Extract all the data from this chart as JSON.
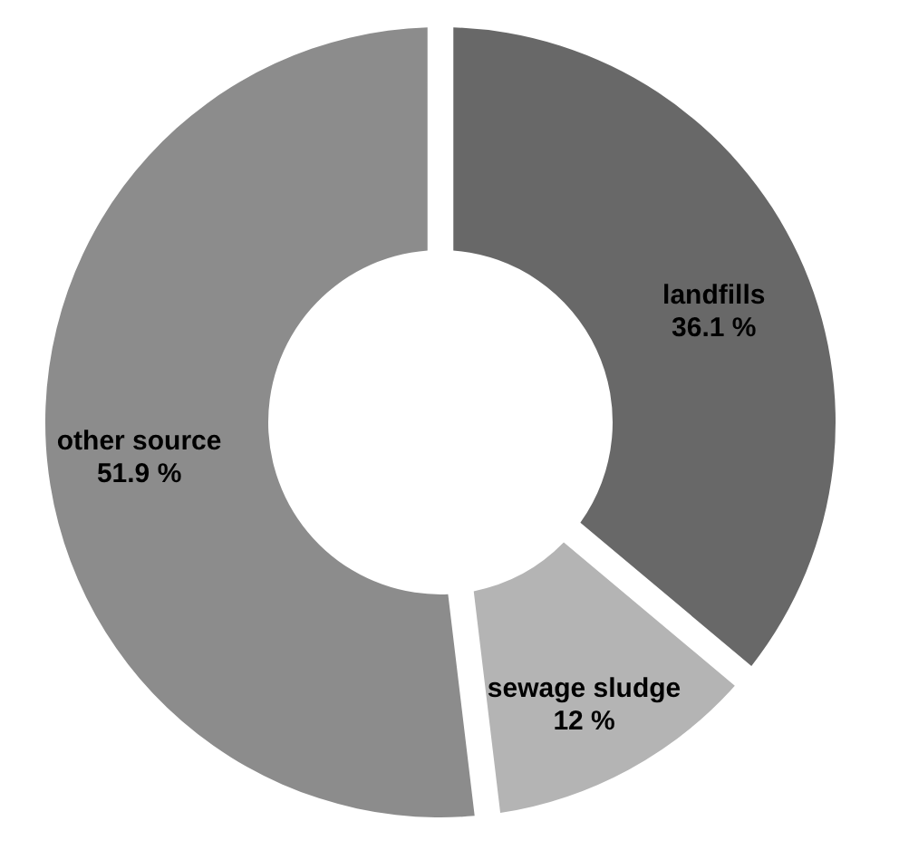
{
  "chart_data": {
    "type": "donut",
    "categories": [
      "landfills",
      "sewage sludge",
      "other source"
    ],
    "values": [
      36.1,
      12,
      51.9
    ],
    "colors": [
      "#686868",
      "#b4b4b4",
      "#8c8c8c"
    ],
    "value_labels": [
      "36.1 %",
      "12 %",
      "51.9 %"
    ],
    "legend": false
  }
}
